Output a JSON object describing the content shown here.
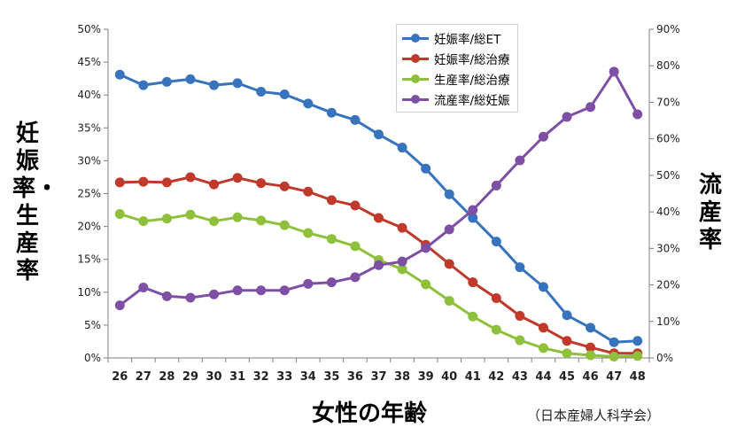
{
  "chart_data": {
    "type": "line",
    "x": [
      26,
      27,
      28,
      29,
      30,
      31,
      32,
      33,
      34,
      35,
      36,
      37,
      38,
      39,
      40,
      41,
      42,
      43,
      44,
      45,
      46,
      47,
      48
    ],
    "xlabel": "女性の年齢",
    "ylabel_left": "妊娠率・生産率",
    "ylabel_right": "流産率",
    "ylim_left": [
      0,
      50
    ],
    "ylim_right": [
      0,
      90
    ],
    "yticks_left": [
      "0%",
      "5%",
      "10%",
      "15%",
      "20%",
      "25%",
      "30%",
      "35%",
      "40%",
      "45%",
      "50%"
    ],
    "yticks_right": [
      "0%",
      "10%",
      "20%",
      "30%",
      "40%",
      "50%",
      "60%",
      "70%",
      "80%",
      "90%"
    ],
    "grid": false,
    "legend_position": "top-right",
    "source": "（日本産婦人科学会）",
    "series": [
      {
        "name": "妊娠率/総ET",
        "axis": "left",
        "color": "#3873bd",
        "values": [
          43.1,
          41.5,
          42.0,
          42.4,
          41.5,
          41.8,
          40.5,
          40.1,
          38.7,
          37.3,
          36.2,
          34.0,
          32.0,
          28.8,
          24.9,
          21.3,
          17.7,
          13.8,
          10.8,
          6.5,
          4.6,
          2.4,
          2.6
        ]
      },
      {
        "name": "妊娠率/総治療",
        "axis": "left",
        "color": "#c0392b",
        "values": [
          26.7,
          26.8,
          26.7,
          27.5,
          26.4,
          27.4,
          26.6,
          26.1,
          25.3,
          24.0,
          23.2,
          21.3,
          19.8,
          17.2,
          14.3,
          11.5,
          9.1,
          6.4,
          4.6,
          2.6,
          1.6,
          0.7,
          0.7
        ]
      },
      {
        "name": "生産率/総治療",
        "axis": "left",
        "color": "#8ec03c",
        "values": [
          21.9,
          20.8,
          21.2,
          21.8,
          20.8,
          21.4,
          20.9,
          20.2,
          19.0,
          18.1,
          17.0,
          14.9,
          13.5,
          11.2,
          8.7,
          6.3,
          4.3,
          2.7,
          1.5,
          0.7,
          0.4,
          0.2,
          0.3
        ]
      },
      {
        "name": "流産率/総妊娠",
        "axis": "right",
        "color": "#7d4fa5",
        "values": [
          14.4,
          19.3,
          16.9,
          16.5,
          17.4,
          18.5,
          18.5,
          18.5,
          20.3,
          20.7,
          22.1,
          25.4,
          26.4,
          30.1,
          35.2,
          40.5,
          47.2,
          54.1,
          60.6,
          66.0,
          68.7,
          78.4,
          66.7
        ]
      }
    ]
  }
}
